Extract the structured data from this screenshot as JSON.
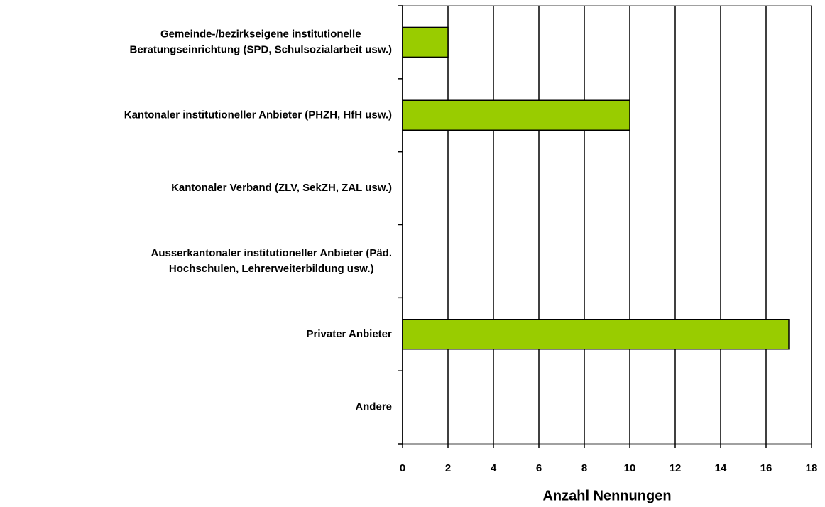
{
  "chart_data": {
    "type": "barh",
    "categories": [
      "Gemeinde-/bezirkseigene institutionelle\nBeratungseinrichtung (SPD, Schulsozialarbeit usw.)",
      "Kantonaler institutioneller Anbieter (PHZH, HfH usw.)",
      "Kantonaler Verband (ZLV, SekZH, ZAL usw.)",
      "Ausserkantonaler institutioneller Anbieter (Päd.\nHochschulen, Lehrerweiterbildung usw.)",
      "Privater Anbieter",
      "Andere"
    ],
    "values": [
      2,
      10,
      0,
      0,
      17,
      0
    ],
    "color": "#99cc00",
    "xlabel": "Anzahl Nennungen",
    "xlim": [
      0,
      18
    ],
    "xticks": [
      0,
      2,
      4,
      6,
      8,
      10,
      12,
      14,
      16,
      18
    ],
    "grid": true
  }
}
